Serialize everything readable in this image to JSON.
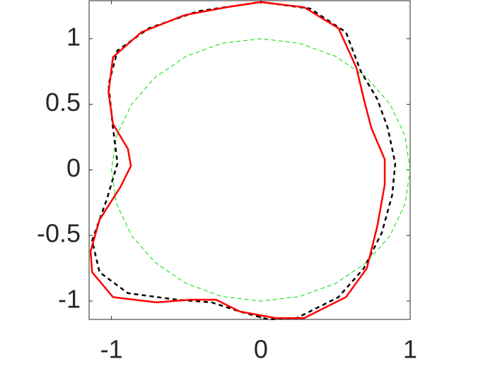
{
  "chart_data": {
    "type": "line",
    "xlim": [
      -1.15,
      1
    ],
    "ylim": [
      -1.14,
      1.29
    ],
    "xticks": [
      -1,
      0,
      1
    ],
    "yticks": [
      -1,
      -0.5,
      0,
      0.5,
      1
    ],
    "series": [
      {
        "color": "#00dd00",
        "dash": "dashed",
        "x": [
          1,
          0.966,
          0.866,
          0.707,
          0.5,
          0.259,
          0,
          -0.259,
          -0.5,
          -0.707,
          -0.866,
          -0.966,
          -1,
          -0.966,
          -0.866,
          -0.707,
          -0.5,
          -0.259,
          0,
          0.259,
          0.5,
          0.707,
          0.866,
          0.966,
          1
        ],
        "values": [
          0,
          0.259,
          0.5,
          0.707,
          0.866,
          0.966,
          1,
          0.966,
          0.866,
          0.707,
          0.5,
          0.259,
          0,
          -0.259,
          -0.5,
          -0.707,
          -0.866,
          -0.966,
          -1,
          -0.966,
          -0.866,
          -0.707,
          -0.5,
          -0.259,
          0
        ]
      },
      {
        "color": "#000000",
        "dash": "dashed",
        "x": [
          0,
          0.33,
          0.57,
          0.67,
          0.78,
          0.85,
          0.9,
          0.88,
          0.81,
          0.69,
          0.52,
          0.24,
          0.05,
          -0.14,
          -0.33,
          -0.56,
          -0.89,
          -1.08,
          -1.13,
          -1.03,
          -0.96,
          -0.99,
          -1.02,
          -0.96,
          -0.75,
          -0.42,
          0
        ],
        "values": [
          1.28,
          1.23,
          1.05,
          0.75,
          0.54,
          0.32,
          0.05,
          -0.19,
          -0.48,
          -0.75,
          -0.97,
          -1.13,
          -1.14,
          -1.08,
          -1.01,
          -0.99,
          -0.94,
          -0.78,
          -0.54,
          -0.22,
          0.05,
          0.32,
          0.65,
          0.91,
          1.08,
          1.21,
          1.28
        ]
      },
      {
        "color": "#ff0000",
        "dash": "solid",
        "x": [
          0,
          0.29,
          0.52,
          0.64,
          0.69,
          0.74,
          0.83,
          0.83,
          0.78,
          0.71,
          0.57,
          0.29,
          0.1,
          -0.14,
          -0.3,
          -0.47,
          -0.7,
          -0.99,
          -1.13,
          -1.14,
          -1.08,
          -0.94,
          -0.87,
          -0.89,
          -0.99,
          -1.02,
          -0.99,
          -0.8,
          -0.51,
          -0.23,
          0
        ],
        "values": [
          1.28,
          1.24,
          1.08,
          0.78,
          0.54,
          0.32,
          0.08,
          -0.11,
          -0.43,
          -0.75,
          -0.97,
          -1.13,
          -1.13,
          -1.08,
          -0.99,
          -0.99,
          -1.01,
          -0.97,
          -0.78,
          -0.62,
          -0.38,
          -0.13,
          0.03,
          0.16,
          0.35,
          0.59,
          0.86,
          1.05,
          1.18,
          1.24,
          1.28
        ]
      }
    ]
  }
}
